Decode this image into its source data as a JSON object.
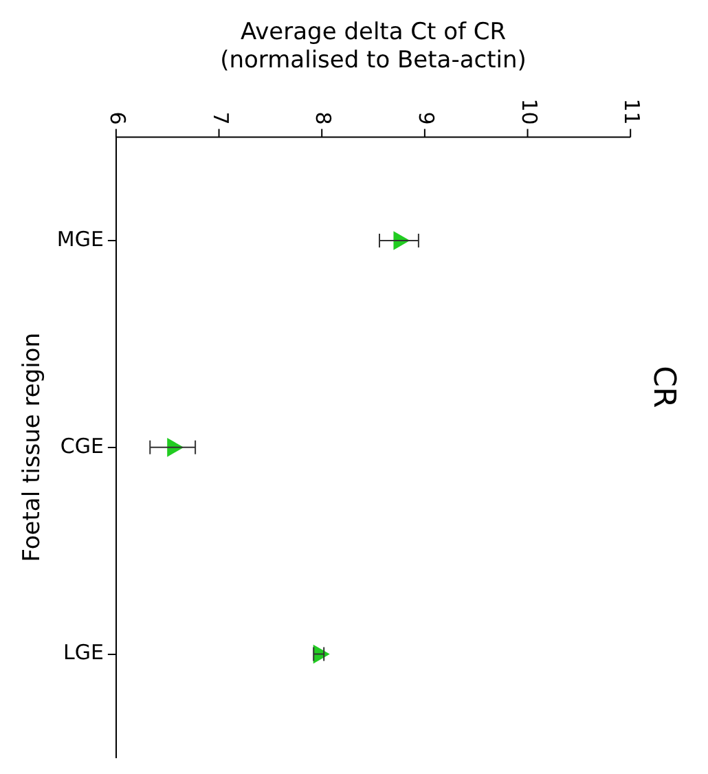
{
  "chart_data": {
    "type": "scatter",
    "orientation": "horizontal",
    "title": "CR",
    "xlabel": "Average delta Ct of CR\n(normalised to Beta-actin)",
    "ylabel": "Foetal tissue region",
    "categories": [
      "MGE",
      "CGE",
      "LGE"
    ],
    "values": [
      8.75,
      6.55,
      7.97
    ],
    "errors": [
      0.19,
      0.22,
      0.05
    ],
    "color": "#22cc22",
    "marker": "triangle",
    "xlim": [
      6,
      11
    ],
    "xticks": [
      6,
      7,
      8,
      9,
      10,
      11
    ],
    "grid": false,
    "legend": false
  }
}
